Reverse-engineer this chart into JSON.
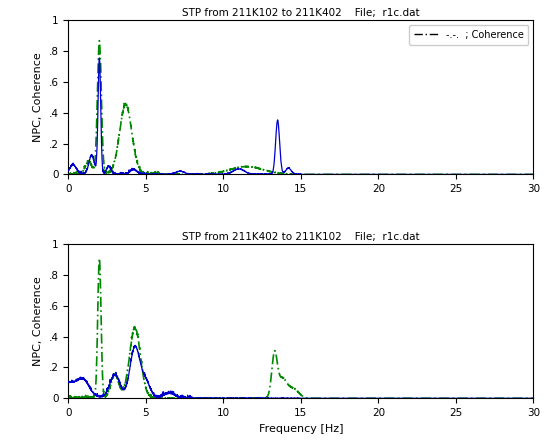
{
  "title1": "STP from 211K102 to 211K402    File;  r1c.dat",
  "title2": "STP from 211K402 to 211K102    File;  r1c.dat",
  "xlabel": "Frequency [Hz]",
  "ylabel": "NPC, Coherence",
  "xlim": [
    0,
    30
  ],
  "ylim": [
    0,
    1
  ],
  "yticks": [
    0,
    0.2,
    0.4,
    0.6,
    0.8,
    1.0
  ],
  "xticks": [
    0,
    5,
    10,
    15,
    20,
    25,
    30
  ],
  "blue_color": "#0000cc",
  "green_color": "#008800",
  "legend_text": "-.-.  ; Coherence",
  "background_color": "#ffffff"
}
